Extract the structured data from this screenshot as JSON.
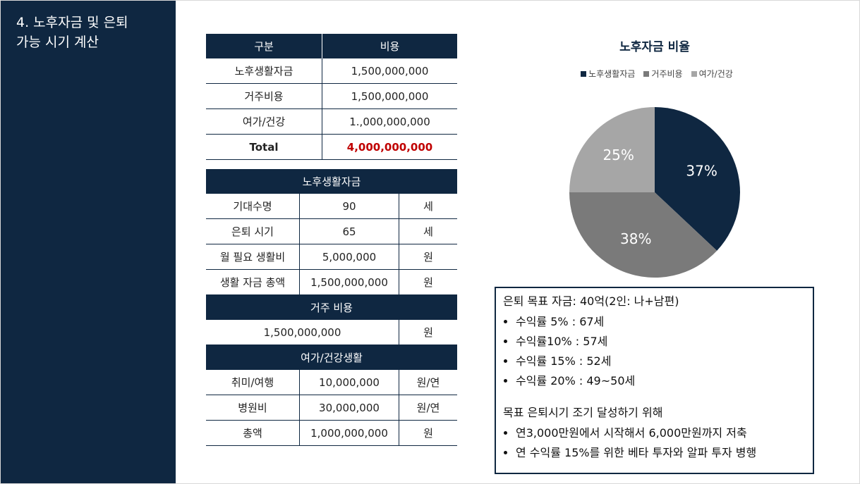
{
  "header": {
    "title_lines": [
      "4. 노후자금 및 은퇴",
      "가능 시기 계산"
    ]
  },
  "cost_table": {
    "headers": [
      "구분",
      "비용"
    ],
    "rows": [
      [
        "노후생활자금",
        "1,500,000,000"
      ],
      [
        "거주비용",
        "1,500,000,000"
      ],
      [
        "여가/건강",
        "1.,000,000,000"
      ]
    ],
    "total": [
      "Total",
      "4,000,000,000"
    ]
  },
  "living_table": {
    "title": "노후생활자금",
    "rows": [
      [
        "기대수명",
        "90",
        "세"
      ],
      [
        "은퇴 시기",
        "65",
        "세"
      ],
      [
        "월 필요 생활비",
        "5,000,000",
        "원"
      ],
      [
        "생활 자금 총액",
        "1,500,000,000",
        "원"
      ]
    ]
  },
  "housing_table": {
    "title": "거주 비용",
    "rows": [
      [
        "1,500,000,000",
        "원"
      ]
    ]
  },
  "leisure_table": {
    "title": "여가/건강생활",
    "rows": [
      [
        "취미/여행",
        "10,000,000",
        "원/연"
      ],
      [
        "병원비",
        "30,000,000",
        "원/연"
      ],
      [
        "총액",
        "1,000,000,000",
        "원"
      ]
    ]
  },
  "chart_data": {
    "type": "pie",
    "title": "노후자금 비율",
    "categories": [
      "노후생활자금",
      "거주비용",
      "여가/건강"
    ],
    "values": [
      37,
      38,
      25
    ],
    "value_labels": [
      "37%",
      "38%",
      "25%"
    ],
    "colors": [
      "#0f2741",
      "#7a7a7a",
      "#a6a6a6"
    ]
  },
  "note": {
    "heading": "은퇴 목표 자금: 40억(2인: 나+남편)",
    "items": [
      "수익률 5% : 67세",
      "수익률10% : 57세",
      "수익률 15% : 52세",
      "수익률 20% : 49~50세"
    ],
    "heading2": "목표 은퇴시기 조기 달성하기 위해",
    "items2": [
      "연3,000만원에서 시작해서 6,000만원까지 저축",
      "연 수익률 15%를 위한 베타 투자와 알파 투자 병행"
    ]
  }
}
